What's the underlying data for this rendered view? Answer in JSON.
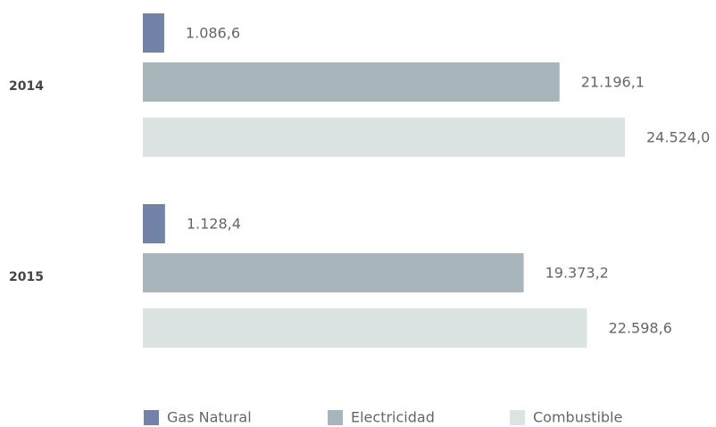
{
  "chart_data": {
    "type": "hbar",
    "categories": [
      "2014",
      "2015"
    ],
    "series": [
      {
        "name": "Gas Natural",
        "color": "#7382a8",
        "values": [
          1086.6,
          1128.4
        ],
        "value_labels": [
          "1.086,6",
          "1.128,4"
        ]
      },
      {
        "name": "Electricidad",
        "color": "#a8b5bb",
        "values": [
          21196.1,
          19373.2
        ],
        "value_labels": [
          "21.196,1",
          "19.373,2"
        ]
      },
      {
        "name": "Combustible",
        "color": "#dce3e3",
        "values": [
          24524.0,
          22598.6
        ],
        "value_labels": [
          "24.524,0",
          "22.598,6"
        ]
      }
    ],
    "legend": "bottom"
  }
}
